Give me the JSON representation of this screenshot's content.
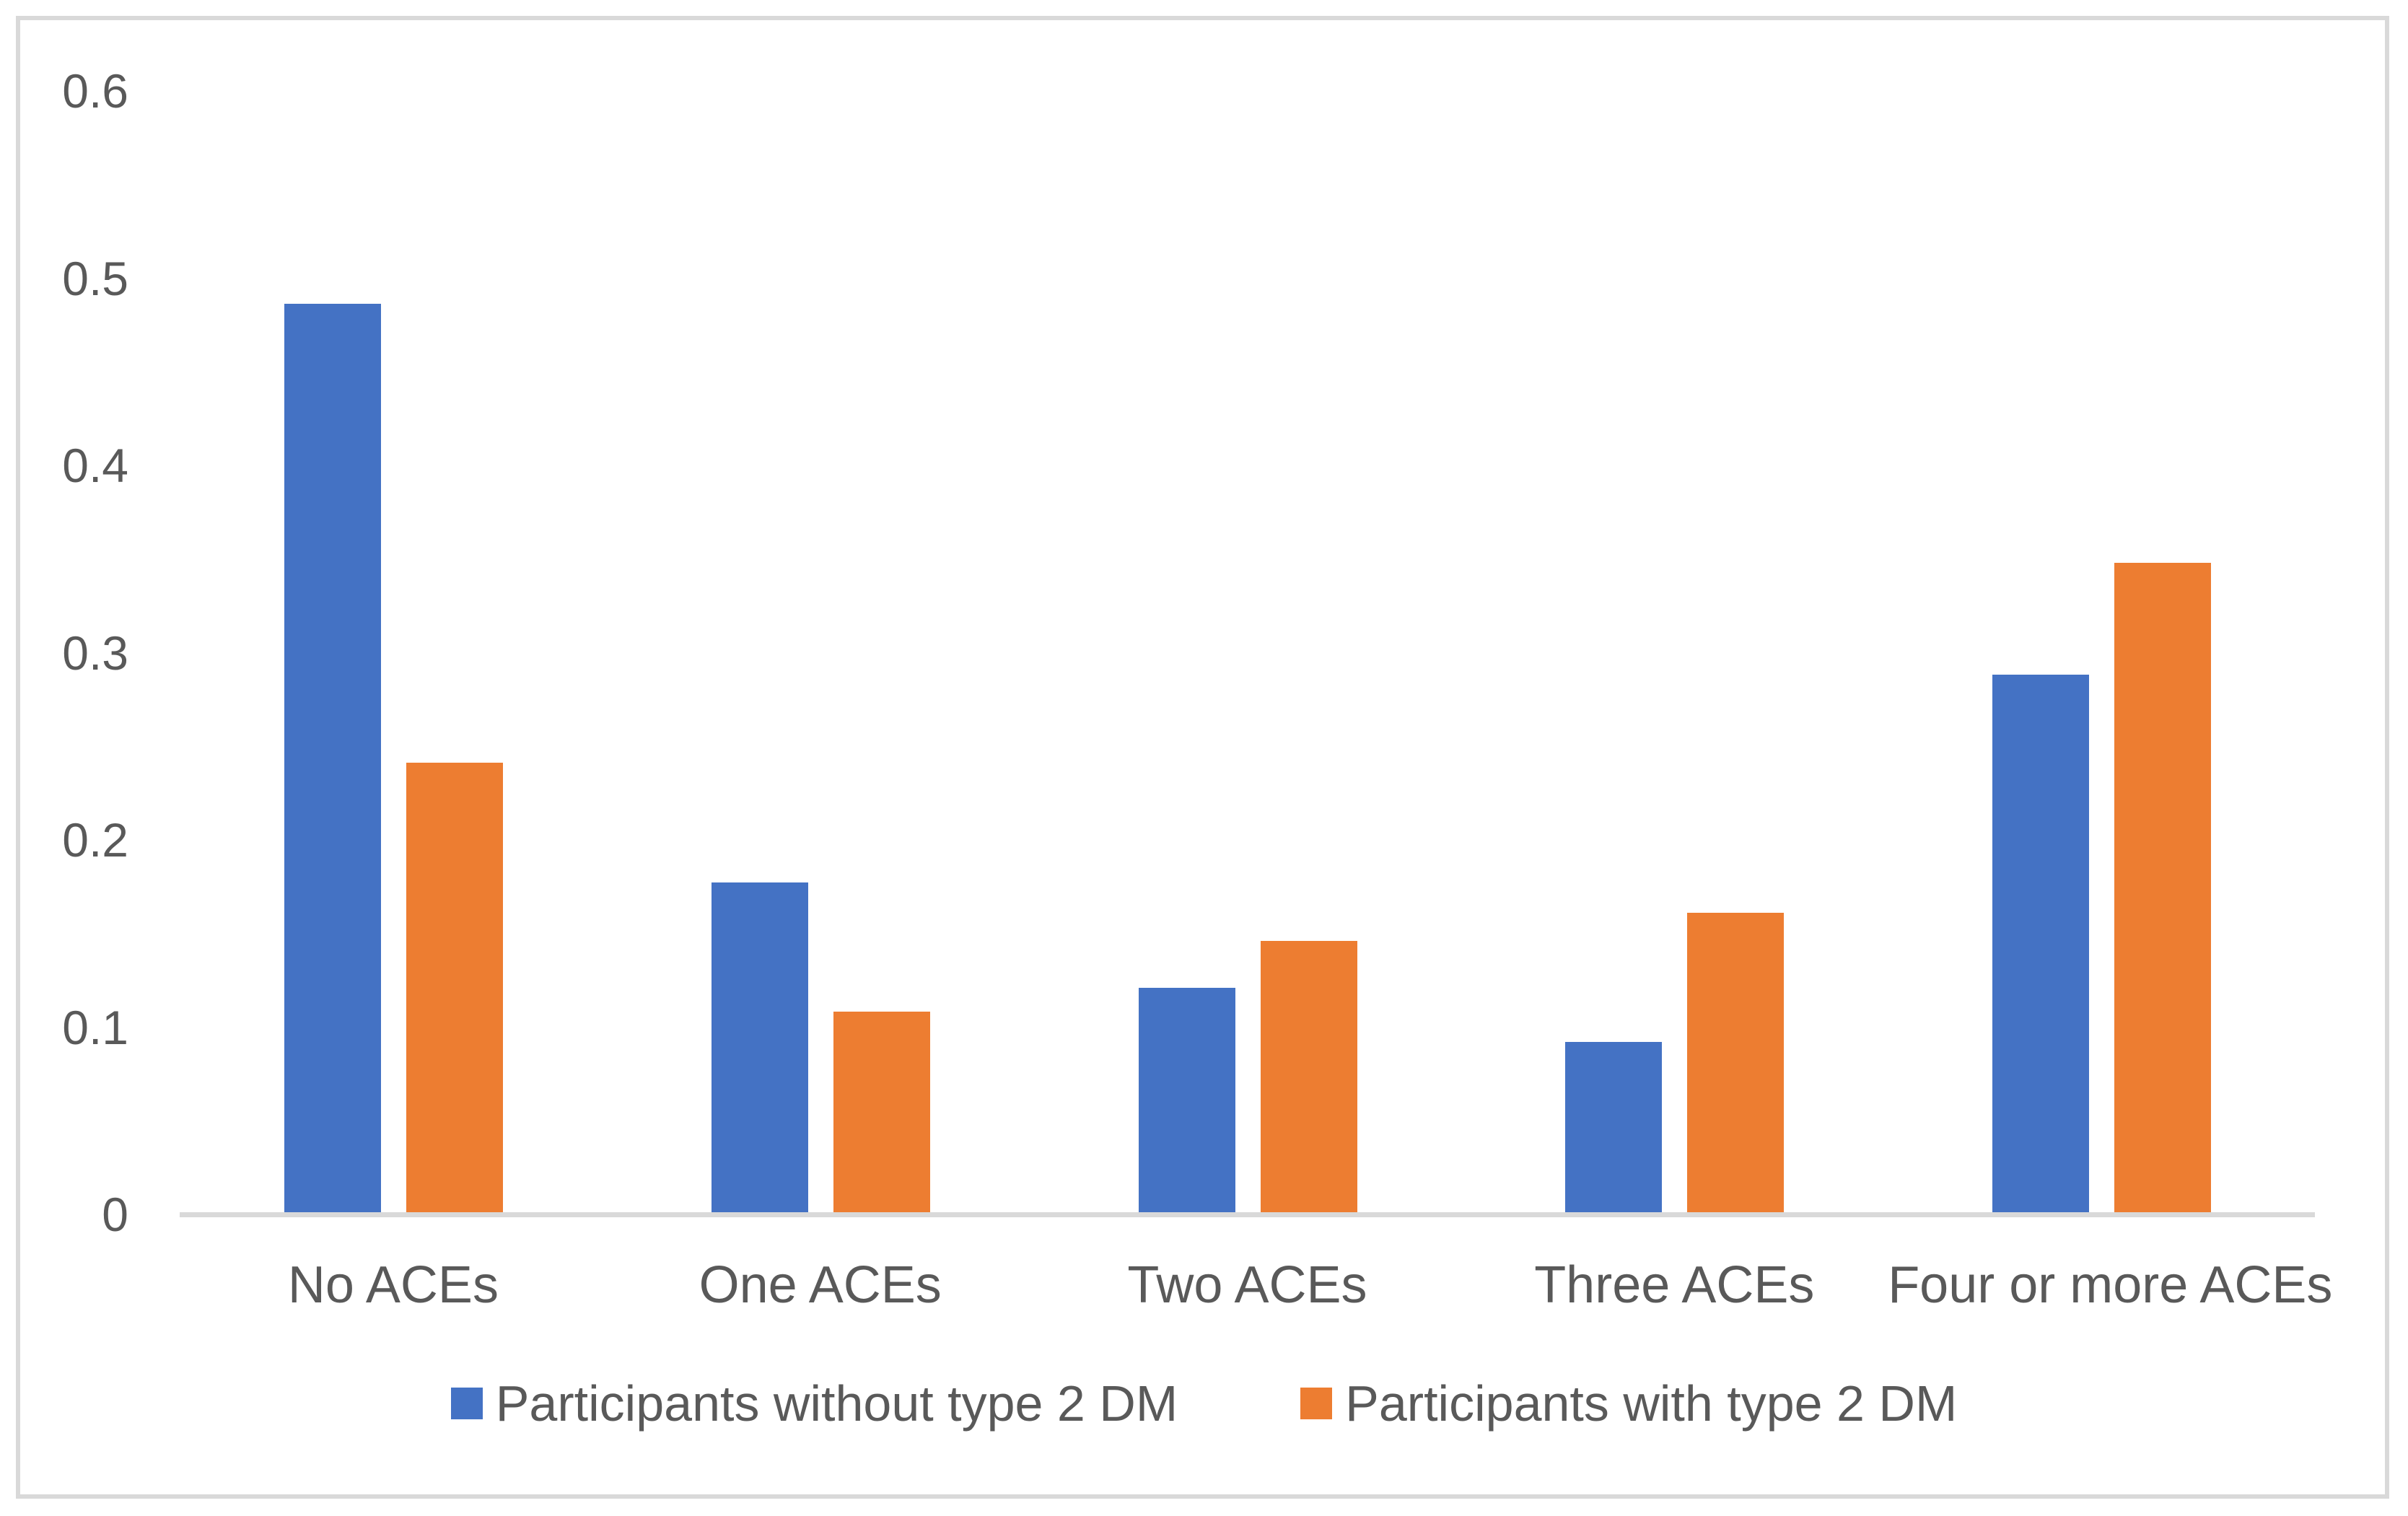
{
  "chart_data": {
    "type": "bar",
    "categories": [
      "No ACEs",
      "One ACEs",
      "Two ACEs",
      "Three ACEs",
      "Four or more ACEs"
    ],
    "series": [
      {
        "name": "Participants without type 2 DM",
        "color": "#4472C4",
        "values": [
          0.485,
          0.176,
          0.12,
          0.091,
          0.287
        ]
      },
      {
        "name": "Participants with type 2 DM",
        "color": "#ED7D31",
        "values": [
          0.24,
          0.107,
          0.145,
          0.16,
          0.347
        ]
      }
    ],
    "title": "",
    "xlabel": "",
    "ylabel": "",
    "ylim": [
      0,
      0.6
    ],
    "ytick_values": [
      0,
      0.1,
      0.2,
      0.3,
      0.4,
      0.5,
      0.6
    ],
    "ytick_labels": [
      "0",
      "0.1",
      "0.2",
      "0.3",
      "0.4",
      "0.5",
      "0.6"
    ],
    "grid": false,
    "legend_position": "bottom"
  },
  "styles": {
    "text_color": "#595959",
    "axis_line_color": "#D9D9D9",
    "frame_border_color": "#D9D9D9",
    "background": "#FFFFFF"
  }
}
